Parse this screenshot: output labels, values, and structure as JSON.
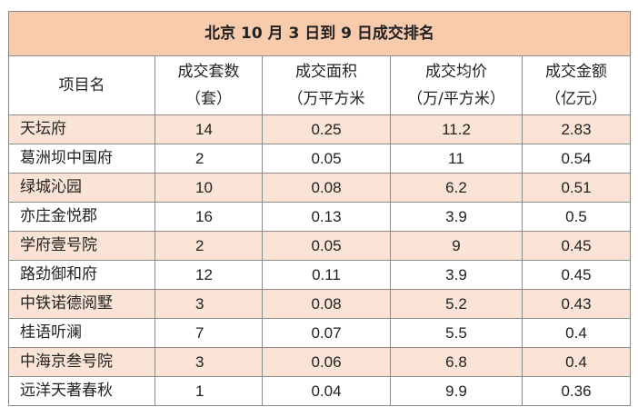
{
  "table": {
    "title": "北京 10 月 3 日到 9 日成交排名",
    "headers": [
      {
        "line1": "项目名",
        "line2": ""
      },
      {
        "line1": "成交套数",
        "line2": "（套）"
      },
      {
        "line1": "成交面积",
        "line2": "（万平方米"
      },
      {
        "line1": "成交均价",
        "line2": "（万/平方米）"
      },
      {
        "line1": "成交金额",
        "line2": "（亿元）"
      }
    ],
    "rows": [
      {
        "name": "天坛府",
        "units": "14",
        "area": "0.25",
        "avg_price": "11.2",
        "amount": "2.83"
      },
      {
        "name": "葛洲坝中国府",
        "units": "2",
        "area": "0.05",
        "avg_price": "11",
        "amount": "0.54"
      },
      {
        "name": "绿城沁园",
        "units": "10",
        "area": "0.08",
        "avg_price": "6.2",
        "amount": "0.51"
      },
      {
        "name": "亦庄金悦郡",
        "units": "16",
        "area": "0.13",
        "avg_price": "3.9",
        "amount": "0.5"
      },
      {
        "name": "学府壹号院",
        "units": "2",
        "area": "0.05",
        "avg_price": "9",
        "amount": "0.45"
      },
      {
        "name": "路劲御和府",
        "units": "12",
        "area": "0.11",
        "avg_price": "3.9",
        "amount": "0.45"
      },
      {
        "name": "中铁诺德阅墅",
        "units": "3",
        "area": "0.08",
        "avg_price": "5.2",
        "amount": "0.43"
      },
      {
        "name": "桂语听澜",
        "units": "7",
        "area": "0.07",
        "avg_price": "5.5",
        "amount": "0.4"
      },
      {
        "name": "中海京叁号院",
        "units": "3",
        "area": "0.06",
        "avg_price": "6.8",
        "amount": "0.4"
      },
      {
        "name": "远洋天著春秋",
        "units": "1",
        "area": "0.04",
        "avg_price": "9.9",
        "amount": "0.36"
      }
    ]
  },
  "colors": {
    "title_background": "#f8cbad",
    "shaded_row_background": "#fbe4d5",
    "border": "#8a8a8a"
  }
}
